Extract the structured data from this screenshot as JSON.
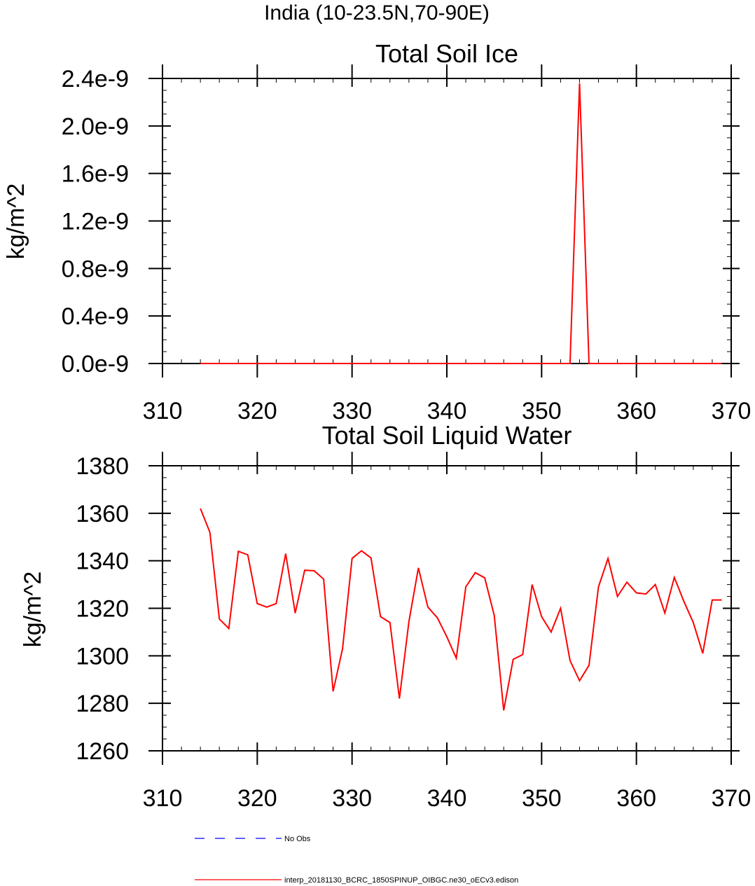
{
  "figure": {
    "title": "India (10-23.5N,70-90E)"
  },
  "chart_data": [
    {
      "type": "line",
      "title": "Total Soil Ice",
      "xlabel": "",
      "ylabel": "kg/m^2",
      "xlim": [
        310,
        370
      ],
      "ylim": [
        0,
        2.4e-09
      ],
      "x_ticks": [
        310,
        320,
        330,
        340,
        350,
        360,
        370
      ],
      "x_tick_labels": [
        "310",
        "320",
        "330",
        "340",
        "350",
        "360",
        "370"
      ],
      "y_ticks": [
        0,
        4e-10,
        8e-10,
        1.2e-09,
        1.6e-09,
        2e-09,
        2.4e-09
      ],
      "y_tick_labels": [
        "0.0e-9",
        "0.4e-9",
        "0.8e-9",
        "1.2e-9",
        "1.6e-9",
        "2.0e-9",
        "2.4e-9"
      ],
      "grid": false,
      "series": [
        {
          "name": "interp_20181130_BCRC_1850SPINUP_OIBGC.ne30_oECv3.edison",
          "color": "#ff0000",
          "x": [
            314,
            315,
            316,
            317,
            318,
            319,
            320,
            321,
            322,
            323,
            324,
            325,
            326,
            327,
            328,
            329,
            330,
            331,
            332,
            333,
            334,
            335,
            336,
            337,
            338,
            339,
            340,
            341,
            342,
            343,
            344,
            345,
            346,
            347,
            348,
            349,
            350,
            351,
            352,
            353,
            354,
            355,
            356,
            357,
            358,
            359,
            360,
            361,
            362,
            363,
            364,
            365,
            366,
            367,
            368,
            369
          ],
          "values": [
            0,
            0,
            0,
            0,
            0,
            0,
            0,
            0,
            0,
            0,
            0,
            0,
            0,
            0,
            0,
            0,
            0,
            0,
            0,
            0,
            0,
            0,
            0,
            0,
            0,
            0,
            0,
            0,
            0,
            0,
            0,
            0,
            0,
            0,
            0,
            0,
            0,
            0,
            0,
            0,
            2.36e-09,
            0,
            0,
            0,
            0,
            0,
            0,
            0,
            0,
            0,
            0,
            0,
            0,
            0,
            0,
            0
          ]
        }
      ]
    },
    {
      "type": "line",
      "title": "Total Soil Liquid Water",
      "xlabel": "",
      "ylabel": "kg/m^2",
      "xlim": [
        310,
        370
      ],
      "ylim": [
        1260,
        1380
      ],
      "x_ticks": [
        310,
        320,
        330,
        340,
        350,
        360,
        370
      ],
      "x_tick_labels": [
        "310",
        "320",
        "330",
        "340",
        "350",
        "360",
        "370"
      ],
      "y_ticks": [
        1260,
        1280,
        1300,
        1320,
        1340,
        1360,
        1380
      ],
      "y_tick_labels": [
        "1260",
        "1280",
        "1300",
        "1320",
        "1340",
        "1360",
        "1380"
      ],
      "grid": false,
      "series": [
        {
          "name": "interp_20181130_BCRC_1850SPINUP_OIBGC.ne30_oECv3.edison",
          "color": "#ff0000",
          "x": [
            314,
            315,
            316,
            317,
            318,
            319,
            320,
            321,
            322,
            323,
            324,
            325,
            326,
            327,
            328,
            329,
            330,
            331,
            332,
            333,
            334,
            335,
            336,
            337,
            338,
            339,
            340,
            341,
            342,
            343,
            344,
            345,
            346,
            347,
            348,
            349,
            350,
            351,
            352,
            353,
            354,
            355,
            356,
            357,
            358,
            359,
            360,
            361,
            362,
            363,
            364,
            365,
            366,
            367,
            368,
            369
          ],
          "values": [
            1362,
            1352,
            1315.5,
            1311.5,
            1344,
            1342.5,
            1322,
            1320.5,
            1322,
            1343,
            1318,
            1336,
            1335.8,
            1332.3,
            1285,
            1303,
            1341,
            1344.2,
            1341.2,
            1316.5,
            1314,
            1282,
            1314.5,
            1337,
            1320.5,
            1316,
            1308,
            1299,
            1329,
            1335,
            1332.8,
            1317,
            1277,
            1298.5,
            1300.5,
            1330,
            1316.5,
            1310,
            1320,
            1298,
            1289.5,
            1296,
            1329,
            1341,
            1325,
            1331,
            1326.5,
            1326,
            1330,
            1318,
            1333,
            1323,
            1314,
            1301,
            1323.5,
            1323.5
          ]
        }
      ]
    }
  ],
  "legend": {
    "placement": "bottom",
    "items": [
      {
        "label": "No Obs",
        "color": "#0000ff",
        "style": "dashed"
      },
      {
        "label": "interp_20181130_BCRC_1850SPINUP_OIBGC.ne30_oECv3.edison",
        "color": "#ff0000",
        "style": "solid"
      }
    ]
  }
}
